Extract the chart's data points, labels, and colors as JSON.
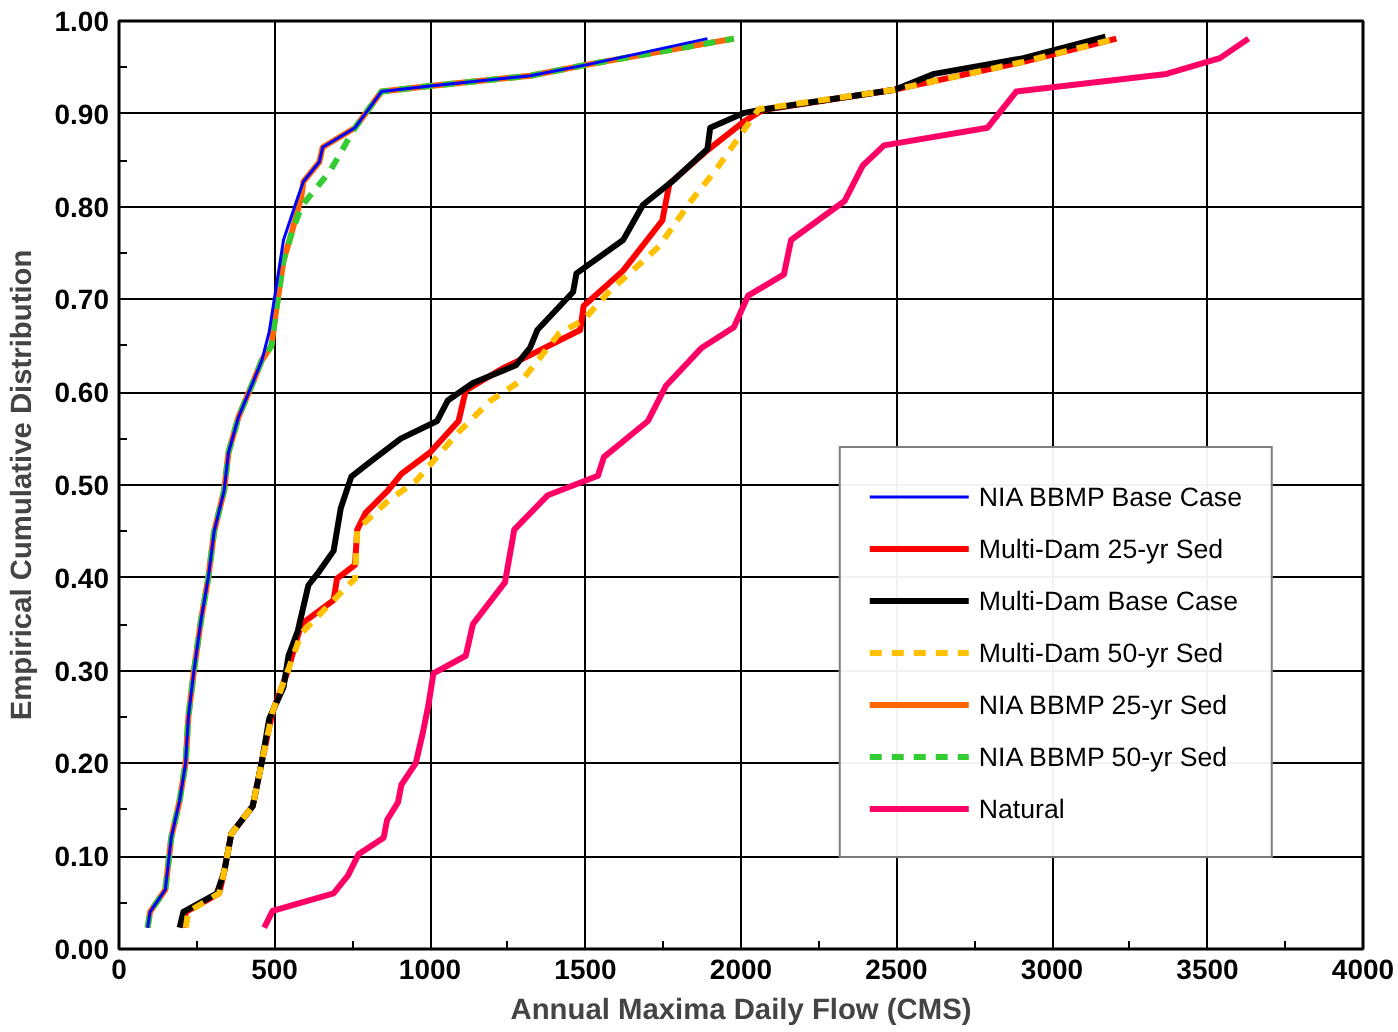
{
  "chart_data": {
    "type": "line",
    "xlabel": "Annual Maxima Daily Flow (CMS)",
    "ylabel": "Empirical Cumulative Distribution",
    "xlim": [
      0,
      4000
    ],
    "xticks": [
      0,
      500,
      1000,
      1500,
      2000,
      2500,
      3000,
      3500,
      4000
    ],
    "ylim": [
      0,
      1
    ],
    "yticks": [
      {
        "value": 0,
        "label": "0.00"
      },
      {
        "value": 0.1,
        "label": "0.10"
      },
      {
        "value": 0.2,
        "label": "0.20"
      },
      {
        "value": 0.3,
        "label": "0.30"
      },
      {
        "value": 0.4,
        "label": "0.40"
      },
      {
        "value": 0.5,
        "label": "0.50"
      },
      {
        "value": 0.6,
        "label": "0.60"
      },
      {
        "value": 0.7,
        "label": "0.70"
      },
      {
        "value": 0.8,
        "label": "0.80"
      },
      {
        "value": 0.9,
        "label": "0.90"
      },
      {
        "value": 1,
        "label": "1.00"
      }
    ],
    "grid": true,
    "legend": "bottom right",
    "series": [
      {
        "name": "NIA BBMP Base Case",
        "color": "#0000ff",
        "line_style": "solid",
        "x": [
          92,
          100,
          149,
          168,
          195,
          214,
          223,
          241,
          264,
          287,
          306,
          338,
          352,
          384,
          430,
          460,
          483,
          529,
          575,
          593,
          644,
          655,
          759,
          844,
          1000,
          1322,
          1506,
          1892
        ],
        "values": [
          0.023,
          0.04,
          0.064,
          0.12,
          0.16,
          0.2,
          0.25,
          0.3,
          0.355,
          0.4,
          0.45,
          0.494,
          0.535,
          0.573,
          0.61,
          0.635,
          0.665,
          0.764,
          0.81,
          0.827,
          0.848,
          0.864,
          0.885,
          0.924,
          0.93,
          0.941,
          0.953,
          0.981
        ]
      },
      {
        "name": "Multi-Dam 25-yr Sed",
        "color": "#ff0000",
        "line_style": "solid",
        "x": [
          207,
          215,
          322,
          338,
          361,
          430,
          460,
          494,
          540,
          586,
          690,
          701,
          759,
          766,
          793,
          862,
          908,
          1000,
          1092,
          1115,
          1230,
          1322,
          1483,
          1494,
          1621,
          1747,
          1770,
          1897,
          2011,
          2069,
          2494,
          2908,
          3207
        ],
        "values": [
          0.023,
          0.04,
          0.06,
          0.083,
          0.124,
          0.154,
          0.203,
          0.256,
          0.297,
          0.35,
          0.376,
          0.399,
          0.414,
          0.452,
          0.47,
          0.493,
          0.512,
          0.535,
          0.569,
          0.602,
          0.625,
          0.64,
          0.667,
          0.693,
          0.731,
          0.785,
          0.825,
          0.862,
          0.892,
          0.904,
          0.926,
          0.956,
          0.981
        ]
      },
      {
        "name": "Multi-Dam Base Case",
        "color": "#000000",
        "line_style": "solid",
        "x": [
          195,
          207,
          315,
          338,
          361,
          430,
          460,
          483,
          529,
          545,
          575,
          609,
          644,
          690,
          713,
          747,
          816,
          906,
          1023,
          1057,
          1138,
          1276,
          1322,
          1345,
          1460,
          1471,
          1621,
          1685,
          1782,
          1892,
          1901,
          2011,
          2057,
          2494,
          2621,
          2908,
          3172
        ],
        "values": [
          0.023,
          0.04,
          0.06,
          0.083,
          0.124,
          0.154,
          0.203,
          0.248,
          0.282,
          0.316,
          0.343,
          0.392,
          0.407,
          0.429,
          0.475,
          0.509,
          0.527,
          0.55,
          0.569,
          0.591,
          0.61,
          0.629,
          0.648,
          0.667,
          0.708,
          0.728,
          0.764,
          0.802,
          0.828,
          0.862,
          0.885,
          0.901,
          0.904,
          0.926,
          0.943,
          0.96,
          0.983
        ]
      },
      {
        "name": "Multi-Dam 50-yr Sed",
        "color": "#ffc000",
        "line_style": "dashed",
        "x": [
          215,
          222,
          322,
          338,
          361,
          430,
          460,
          494,
          540,
          586,
          690,
          759,
          766,
          862,
          954,
          1092,
          1195,
          1299,
          1414,
          1494,
          1575,
          1736,
          1839,
          1920,
          2057,
          2494,
          2908,
          3207
        ],
        "values": [
          0.023,
          0.04,
          0.06,
          0.083,
          0.124,
          0.154,
          0.203,
          0.256,
          0.297,
          0.34,
          0.376,
          0.399,
          0.452,
          0.482,
          0.504,
          0.557,
          0.591,
          0.614,
          0.663,
          0.678,
          0.708,
          0.757,
          0.806,
          0.84,
          0.905,
          0.926,
          0.956,
          0.981
        ]
      },
      {
        "name": "NIA BBMP 25-yr Sed",
        "color": "#ff6600",
        "line_style": "solid",
        "x": [
          92,
          100,
          149,
          168,
          195,
          214,
          223,
          241,
          264,
          287,
          306,
          338,
          352,
          384,
          430,
          460,
          490,
          506,
          529,
          552,
          586,
          593,
          644,
          655,
          759,
          844,
          1000,
          1322,
          1506,
          1977
        ],
        "values": [
          0.023,
          0.04,
          0.064,
          0.12,
          0.16,
          0.2,
          0.25,
          0.3,
          0.355,
          0.4,
          0.45,
          0.494,
          0.535,
          0.573,
          0.61,
          0.635,
          0.65,
          0.69,
          0.742,
          0.768,
          0.81,
          0.827,
          0.848,
          0.864,
          0.885,
          0.924,
          0.93,
          0.941,
          0.953,
          0.981
        ]
      },
      {
        "name": "NIA BBMP 50-yr Sed",
        "color": "#33cc33",
        "line_style": "dashed",
        "x": [
          92,
          100,
          149,
          168,
          195,
          214,
          223,
          241,
          264,
          287,
          306,
          338,
          352,
          384,
          430,
          460,
          490,
          506,
          529,
          552,
          586,
          678,
          759,
          844,
          1000,
          1322,
          1506,
          1977
        ],
        "values": [
          0.023,
          0.04,
          0.064,
          0.12,
          0.16,
          0.2,
          0.25,
          0.3,
          0.355,
          0.4,
          0.45,
          0.494,
          0.535,
          0.573,
          0.61,
          0.635,
          0.65,
          0.69,
          0.742,
          0.768,
          0.8,
          0.838,
          0.885,
          0.924,
          0.93,
          0.941,
          0.953,
          0.981
        ]
      },
      {
        "name": "Natural",
        "color": "#ff0066",
        "line_style": "solid",
        "x": [
          467,
          494,
          690,
          736,
          770,
          851,
          862,
          897,
          908,
          954,
          977,
          995,
          1011,
          1115,
          1138,
          1241,
          1271,
          1379,
          1540,
          1559,
          1701,
          1759,
          1874,
          1977,
          2023,
          2138,
          2161,
          2333,
          2391,
          2460,
          2793,
          2885,
          3368,
          3540,
          3632
        ],
        "values": [
          0.023,
          0.041,
          0.06,
          0.079,
          0.102,
          0.12,
          0.139,
          0.158,
          0.177,
          0.2,
          0.233,
          0.263,
          0.297,
          0.316,
          0.35,
          0.395,
          0.452,
          0.489,
          0.51,
          0.53,
          0.569,
          0.607,
          0.648,
          0.67,
          0.704,
          0.727,
          0.764,
          0.806,
          0.844,
          0.866,
          0.885,
          0.924,
          0.943,
          0.96,
          0.981
        ]
      }
    ]
  }
}
